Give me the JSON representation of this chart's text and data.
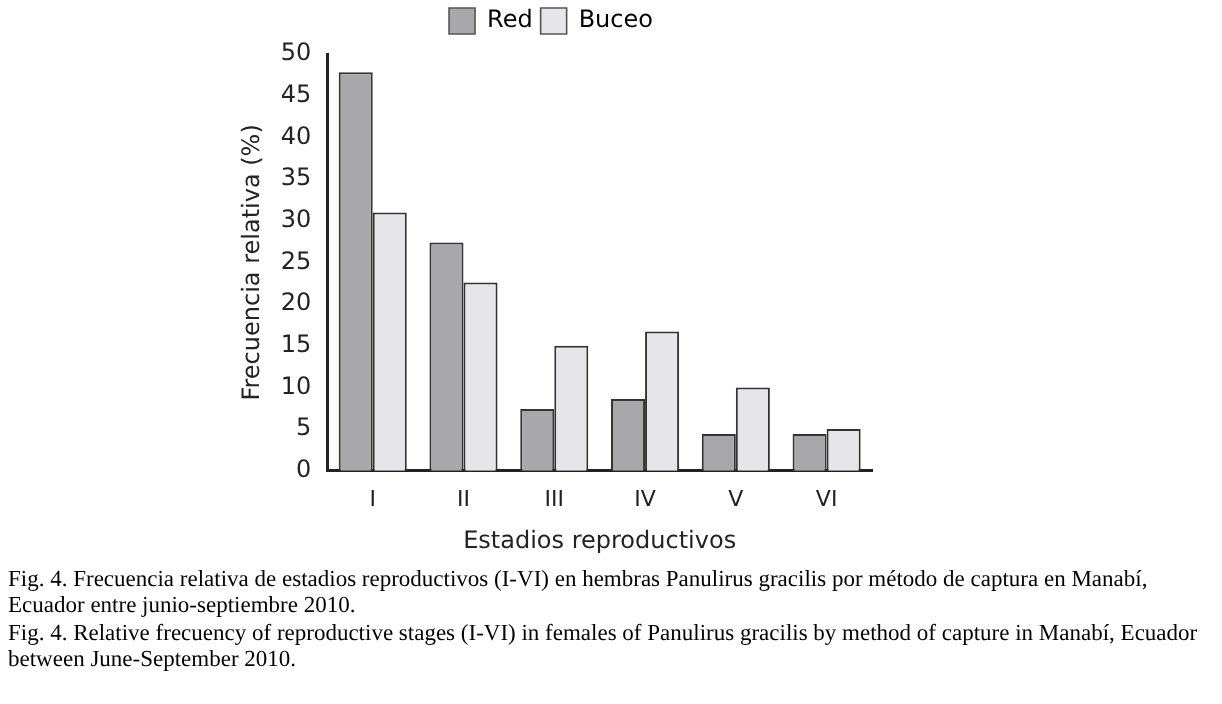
{
  "chart_data": {
    "type": "bar",
    "xlabel": "Estadios reproductivos",
    "ylabel": "Frecuencia relativa (%)",
    "categories": [
      "I",
      "II",
      "III",
      "IV",
      "V",
      "VI"
    ],
    "series": [
      {
        "name": "Red",
        "color": "#a8a8ab",
        "values": [
          47.8,
          27.4,
          7.4,
          8.6,
          4.4,
          4.4
        ]
      },
      {
        "name": "Buceo",
        "color": "#e6e6ea",
        "values": [
          31,
          22.6,
          15,
          16.7,
          10,
          5
        ]
      }
    ],
    "ylim": [
      0,
      50
    ],
    "yticks": [
      0,
      5,
      10,
      15,
      20,
      25,
      30,
      35,
      40,
      45,
      50
    ],
    "grid": false,
    "legend": "top",
    "annotations": [
      "Fig. 4. Frecuencia relativa de estadios reproductivos (I-VI) en hembras Panulirus gracilis por método de captura en Manabí, Ecuador entre junio-septiembre 2010.",
      "Fig. 4. Relative frecuency of reproductive stages (I-VI) in females of Panulirus gracilis by method of capture in Manabí, Ecuador between June-September 2010."
    ]
  }
}
